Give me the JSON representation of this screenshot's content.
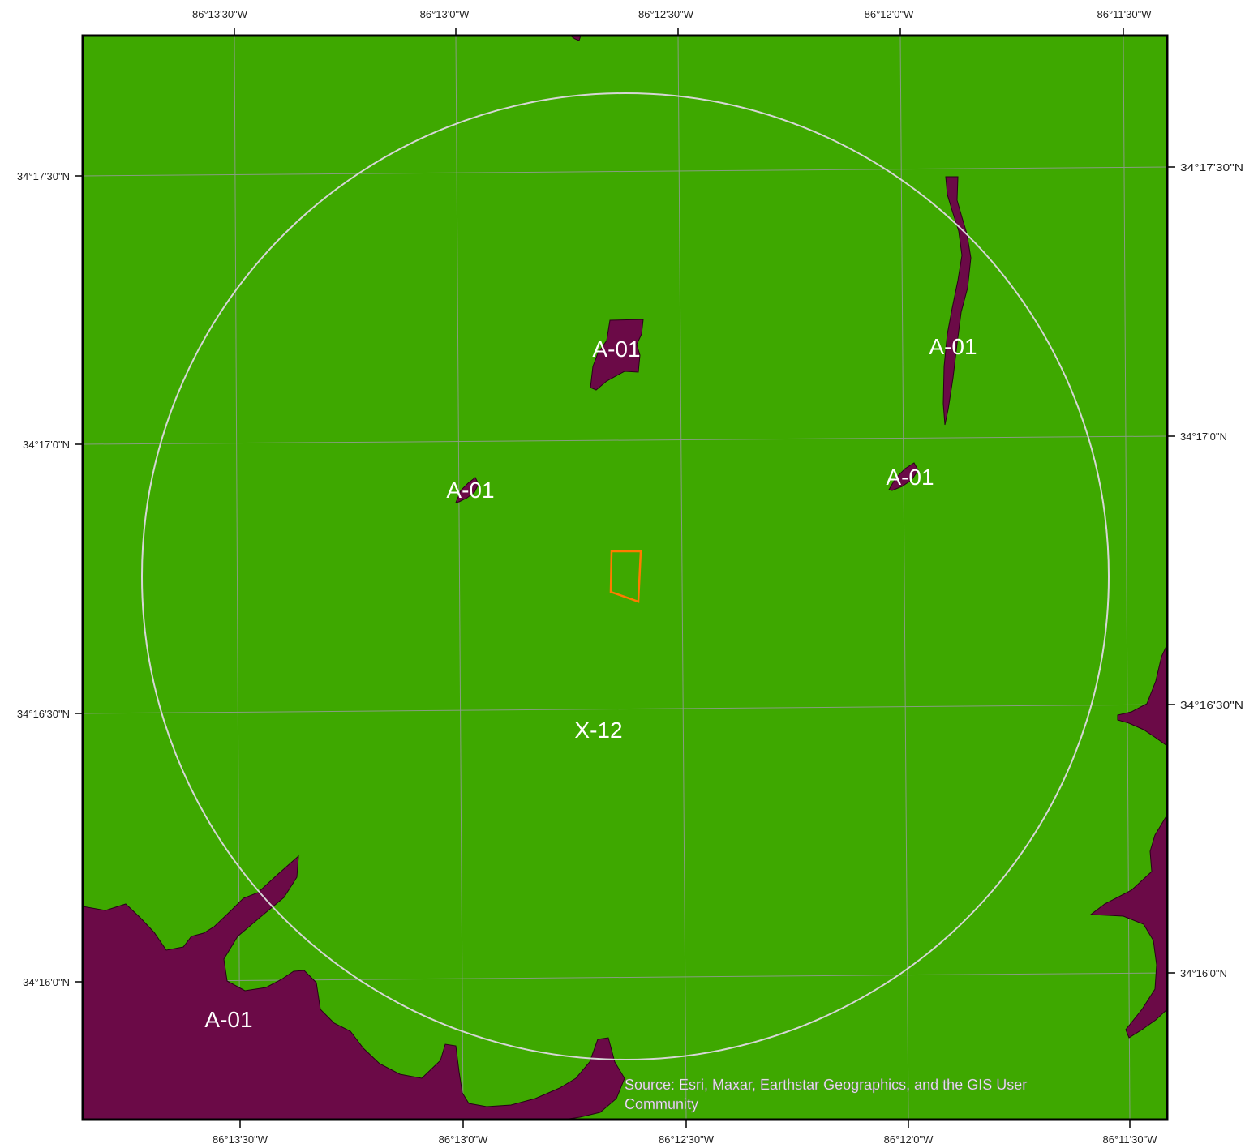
{
  "map": {
    "background_color": "#3ea800",
    "feature_color": "#6b0a47",
    "buffer_color": "#d6d6d6",
    "site_color": "#ff7a00",
    "frame_color": "#000000"
  },
  "grid": {
    "lon_top": [
      "86°13'30\"W",
      "86°13'0\"W",
      "86°12'30\"W",
      "86°12'0\"W",
      "86°11'30\"W"
    ],
    "lon_bottom": [
      "86°13'30\"W",
      "86°13'0\"W",
      "86°12'30\"W",
      "86°12'0\"W",
      "86°11'30\"W"
    ],
    "lat_left": [
      "34°17'30\"N",
      "34°17'0\"N",
      "34°16'30\"N",
      "34°16'0\"N"
    ],
    "lat_right": [
      "34°17'30\"N",
      "34°17'0\"N",
      "34°16'30\"N",
      "34°16'0\"N"
    ]
  },
  "labels": {
    "zone_a01_center": "A-01",
    "zone_a01_ne": "A-01",
    "zone_a01_west": "A-01",
    "zone_a01_east": "A-01",
    "zone_a01_sw": "A-01",
    "zone_x12": "X-12"
  },
  "attribution": {
    "line1": "Source: Esri, Maxar, Earthstar Geographics, and the GIS User",
    "line2": "Community"
  }
}
